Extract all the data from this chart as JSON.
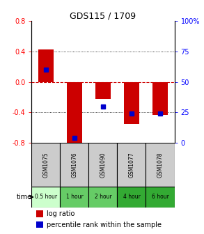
{
  "title": "GDS115 / 1709",
  "samples": [
    "GSM1075",
    "GSM1076",
    "GSM1090",
    "GSM1077",
    "GSM1078"
  ],
  "times": [
    "0.5 hour",
    "1 hour",
    "2 hour",
    "4 hour",
    "6 hour"
  ],
  "log_ratios": [
    0.43,
    -0.82,
    -0.22,
    -0.55,
    -0.43
  ],
  "percentile_ranks": [
    0.6,
    0.04,
    0.3,
    0.24,
    0.24
  ],
  "ylim": [
    -0.8,
    0.8
  ],
  "yticks_left": [
    -0.8,
    -0.4,
    0.0,
    0.4,
    0.8
  ],
  "yticks_right": [
    0,
    25,
    50,
    75,
    100
  ],
  "bar_color": "#cc0000",
  "dot_color": "#0000cc",
  "zero_line_color": "#cc0000",
  "grid_color": "#000000",
  "time_colors": [
    "#ccffcc",
    "#66cc66",
    "#66cc66",
    "#33aa33",
    "#33aa33"
  ],
  "sample_bg": "#cccccc",
  "legend_log_color": "#cc0000",
  "legend_pct_color": "#0000cc"
}
